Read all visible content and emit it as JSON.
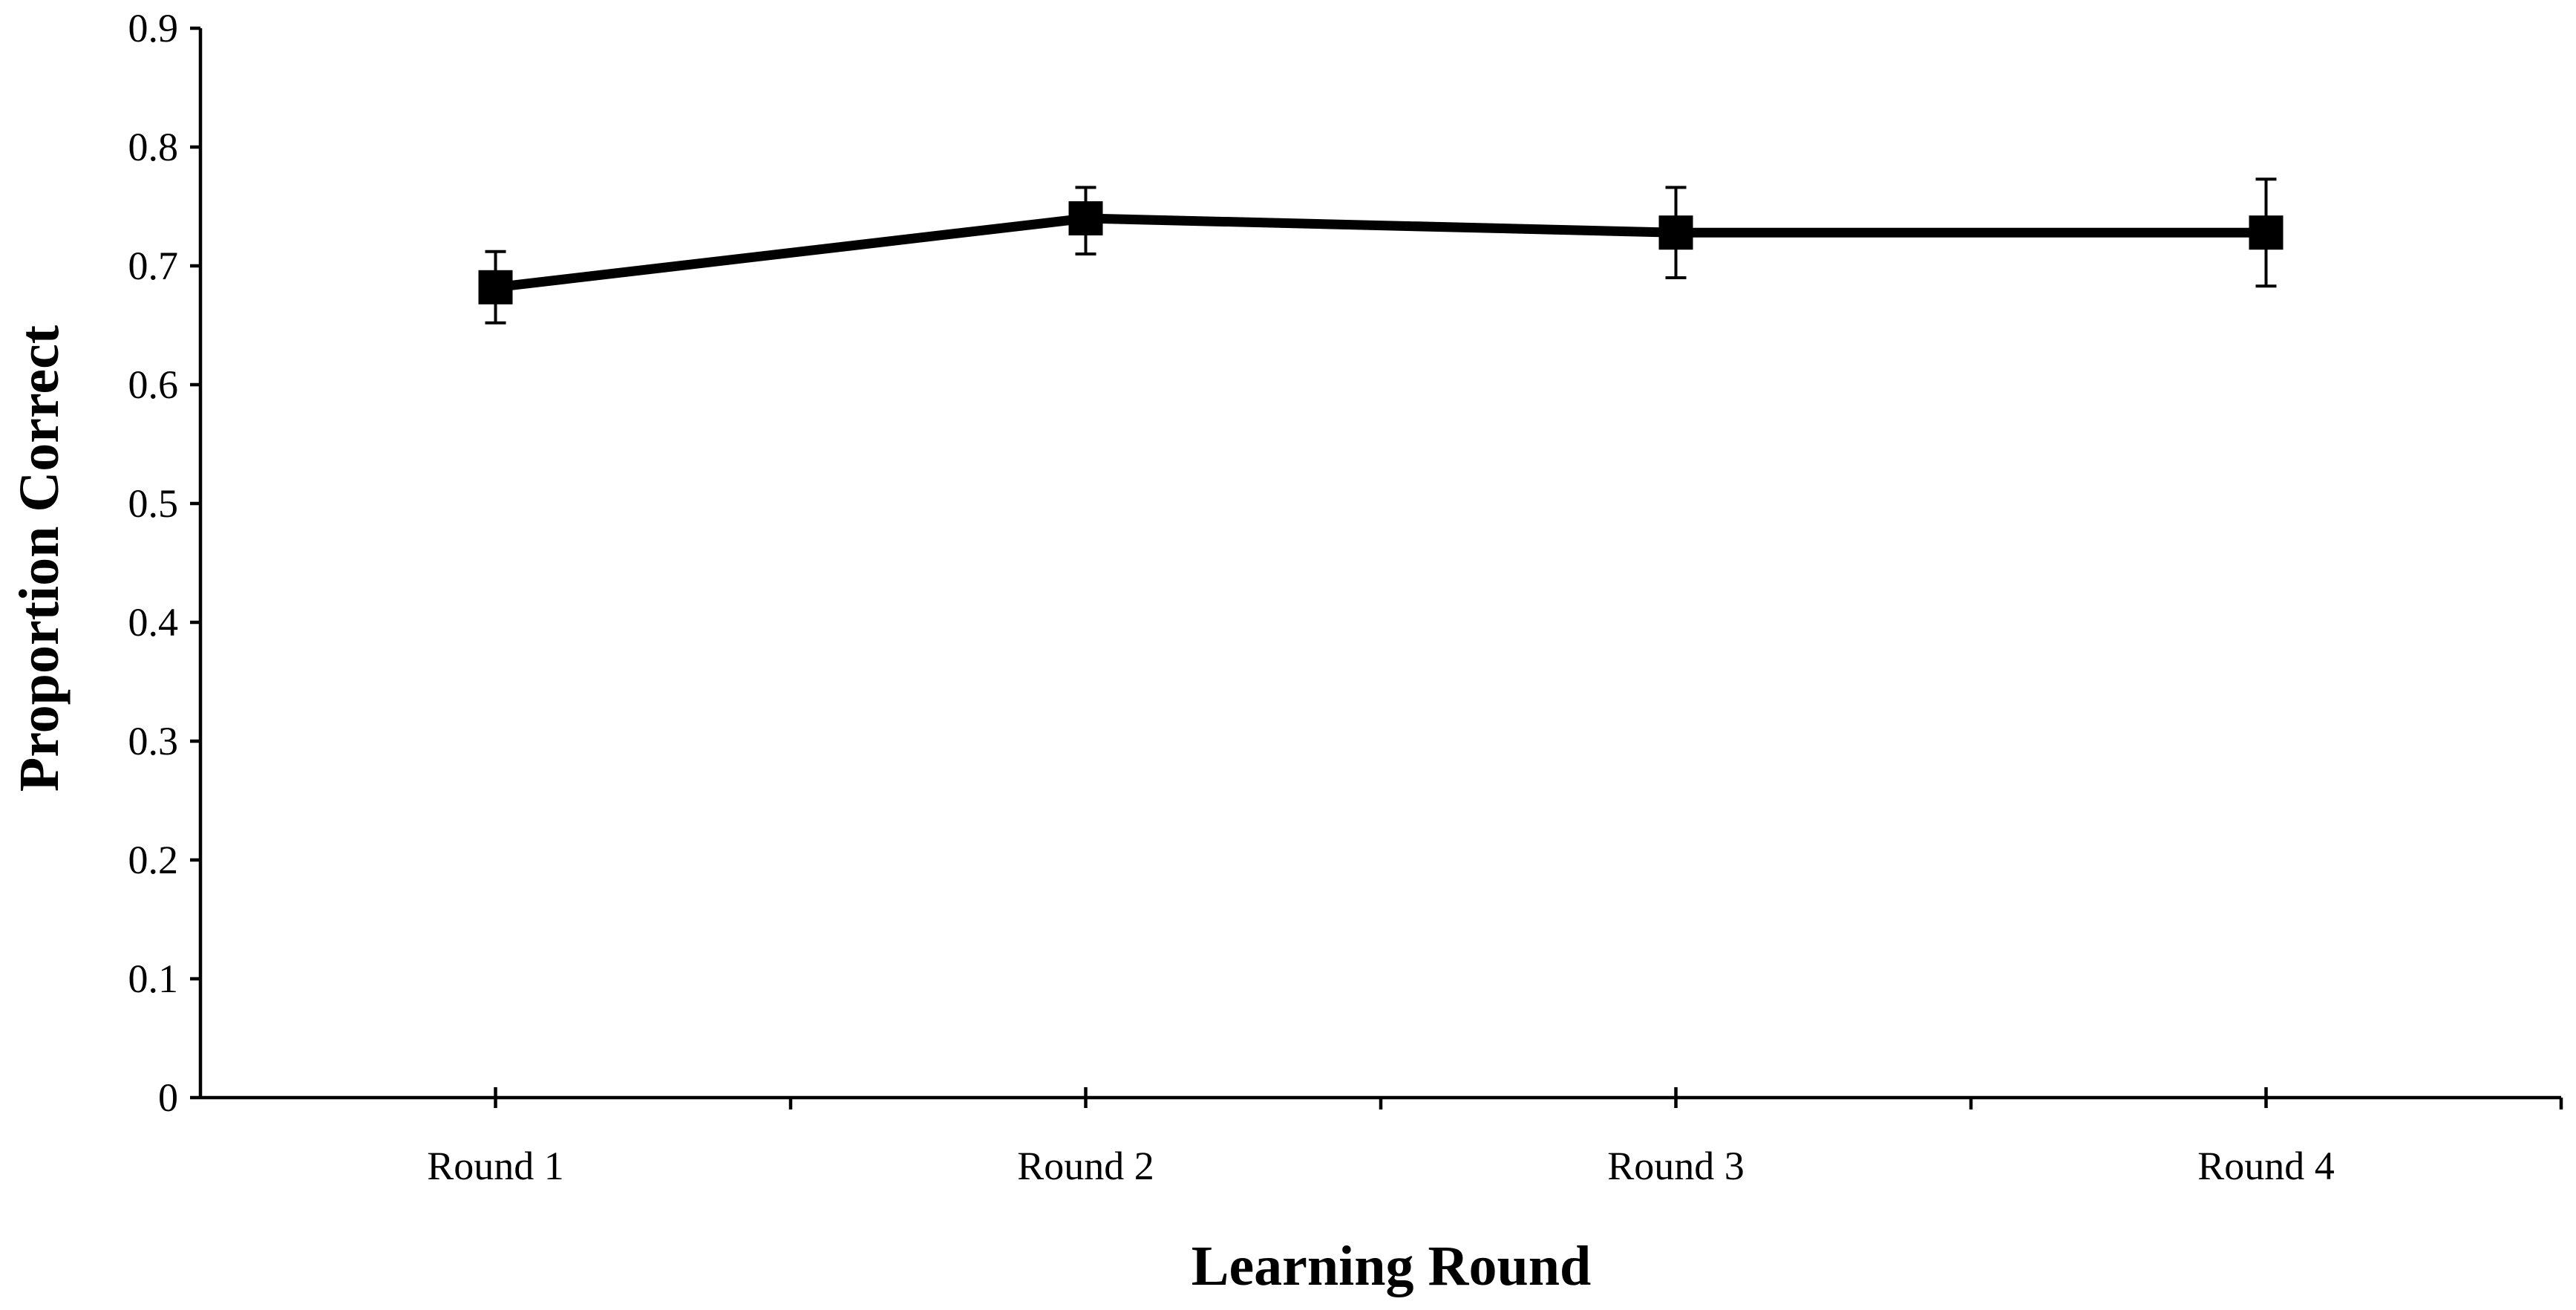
{
  "chart_data": {
    "type": "line",
    "xlabel": "Learning Round",
    "ylabel": "Proportion Correct",
    "categories": [
      "Round 1",
      "Round 2",
      "Round 3",
      "Round 4"
    ],
    "ylim": [
      0,
      0.9
    ],
    "yticks": [
      0,
      0.1,
      0.2,
      0.3,
      0.4,
      0.5,
      0.6,
      0.7,
      0.8,
      0.9
    ],
    "ytick_labels": [
      "0",
      "0.1",
      "0.2",
      "0.3",
      "0.4",
      "0.5",
      "0.6",
      "0.7",
      "0.8",
      "0.9"
    ],
    "grid": false,
    "series": [
      {
        "values": [
          0.682,
          0.74,
          0.728,
          0.728
        ],
        "error_upper": [
          0.03,
          0.026,
          0.038,
          0.045
        ],
        "error_lower": [
          0.03,
          0.03,
          0.038,
          0.045
        ],
        "color": "#000000",
        "marker": "square"
      }
    ]
  }
}
